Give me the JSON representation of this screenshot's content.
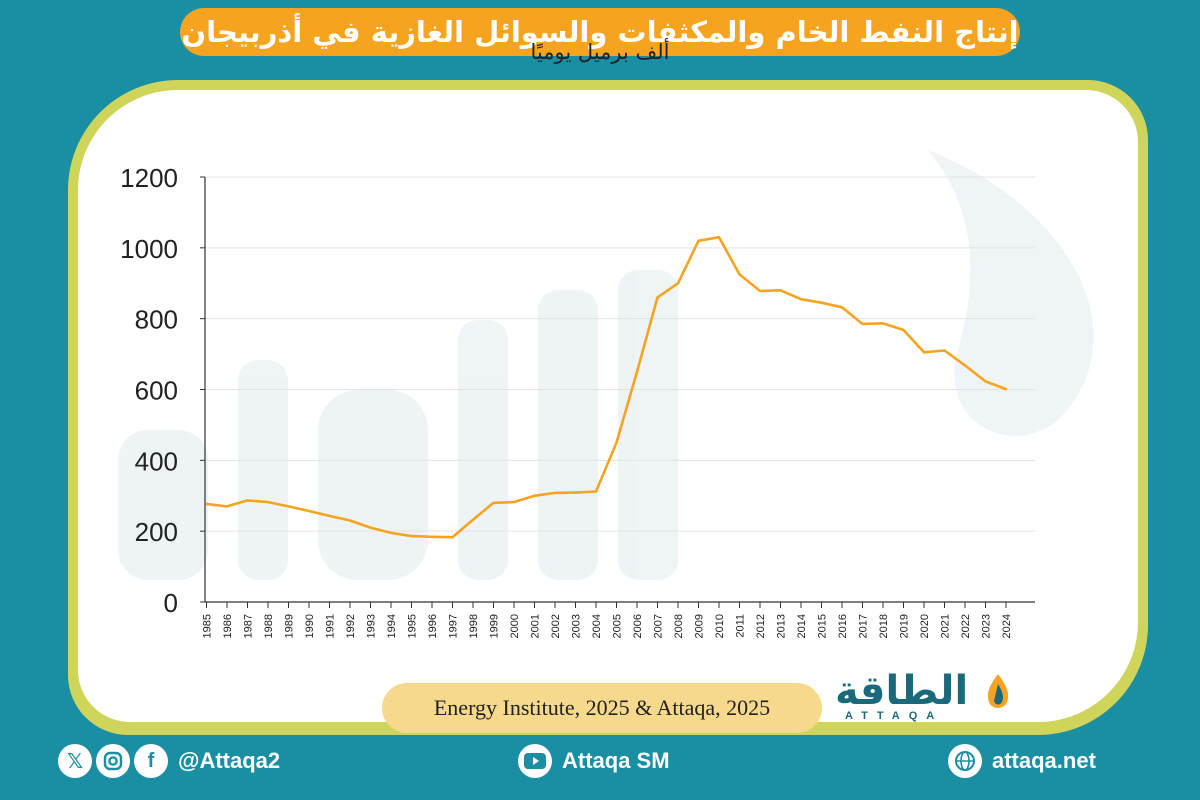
{
  "header": {
    "title": "إنتاج النفط الخام والمكثفات والسوائل الغازية في أذربيجان"
  },
  "chart_data": {
    "type": "line",
    "title": "إنتاج النفط الخام والمكثفات والسوائل الغازية في أذربيجان",
    "ylabel": "ألف برميل يوميًا",
    "xlabel": "",
    "ylim": [
      0,
      1200
    ],
    "yticks": [
      0,
      200,
      400,
      600,
      800,
      1000,
      1200
    ],
    "grid": true,
    "line_color": "#f6a31f",
    "x": [
      "1985",
      "1986",
      "1987",
      "1988",
      "1989",
      "1990",
      "1991",
      "1992",
      "1993",
      "1994",
      "1995",
      "1996",
      "1997",
      "1998",
      "1999",
      "2000",
      "2001",
      "2002",
      "2003",
      "2004",
      "2005",
      "2006",
      "2007",
      "2008",
      "2009",
      "2010",
      "2011",
      "2012",
      "2013",
      "2014",
      "2015",
      "2016",
      "2017",
      "2018",
      "2019",
      "2020",
      "2021",
      "2022",
      "2023",
      "2024"
    ],
    "values": [
      277,
      270,
      287,
      282,
      270,
      257,
      243,
      230,
      210,
      195,
      186,
      184,
      183,
      232,
      280,
      282,
      300,
      308,
      309,
      312,
      450,
      650,
      860,
      900,
      1020,
      1030,
      925,
      878,
      880,
      855,
      845,
      832,
      785,
      787,
      768,
      705,
      710,
      668,
      623,
      601
    ]
  },
  "source": {
    "text": "Energy Institute, 2025 & Attaqa, 2025"
  },
  "brand": {
    "name": "الطاقة",
    "sub": "ATTAQA",
    "color": "#1a6a7c"
  },
  "footer": {
    "social_handle": "@Attaqa2",
    "youtube": "Attaqa SM",
    "website": "attaqa.net",
    "icons": [
      "x-icon",
      "instagram-icon",
      "facebook-icon",
      "youtube-icon",
      "globe-icon"
    ]
  }
}
